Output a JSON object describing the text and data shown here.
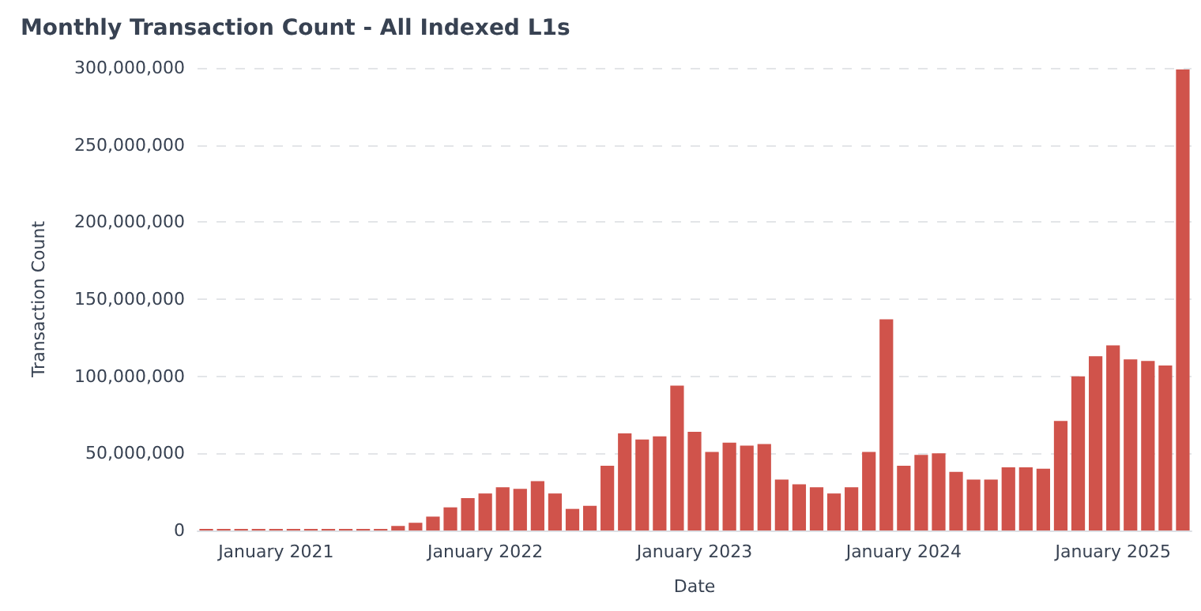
{
  "chart_data": {
    "type": "bar",
    "title": "Monthly Transaction Count - All Indexed L1s",
    "xlabel": "Date",
    "ylabel": "Transaction Count",
    "categories": [
      null,
      null,
      null,
      null,
      "January 2021",
      null,
      null,
      null,
      null,
      null,
      null,
      null,
      null,
      null,
      null,
      null,
      "January 2022",
      null,
      null,
      null,
      null,
      null,
      null,
      null,
      null,
      null,
      null,
      null,
      "January 2023",
      null,
      null,
      null,
      null,
      null,
      null,
      null,
      null,
      null,
      null,
      null,
      "January 2024",
      null,
      null,
      null,
      null,
      null,
      null,
      null,
      null,
      null,
      null,
      null,
      "January 2025",
      null,
      null,
      null,
      null
    ],
    "values": [
      1000000,
      1000000,
      1000000,
      1000000,
      1000000,
      1000000,
      1000000,
      1000000,
      1000000,
      1000000,
      1000000,
      3000000,
      5000000,
      9000000,
      15000000,
      21000000,
      24000000,
      28000000,
      27000000,
      32000000,
      24000000,
      14000000,
      16000000,
      42000000,
      63000000,
      59000000,
      61000000,
      94000000,
      64000000,
      51000000,
      57000000,
      55000000,
      56000000,
      33000000,
      30000000,
      28000000,
      24000000,
      28000000,
      51000000,
      137000000,
      42000000,
      49000000,
      50000000,
      38000000,
      33000000,
      33000000,
      41000000,
      41000000,
      40000000,
      71000000,
      100000000,
      113000000,
      120000000,
      111000000,
      110000000,
      107000000,
      299000000
    ],
    "color": "#d0534b",
    "ylim": [
      0,
      300000000
    ],
    "yticks": [
      0,
      {
        "value": 50000000,
        "label": "50,000,000"
      },
      {
        "value": 100000000,
        "label": "100,000,000"
      },
      {
        "value": 150000000,
        "label": "150,000,000"
      },
      {
        "value": 200000000,
        "label": "200,000,000"
      },
      {
        "value": 250000000,
        "label": "250,000,000"
      },
      {
        "value": 300000000,
        "label": "300,000,000"
      }
    ],
    "grid": "y"
  }
}
